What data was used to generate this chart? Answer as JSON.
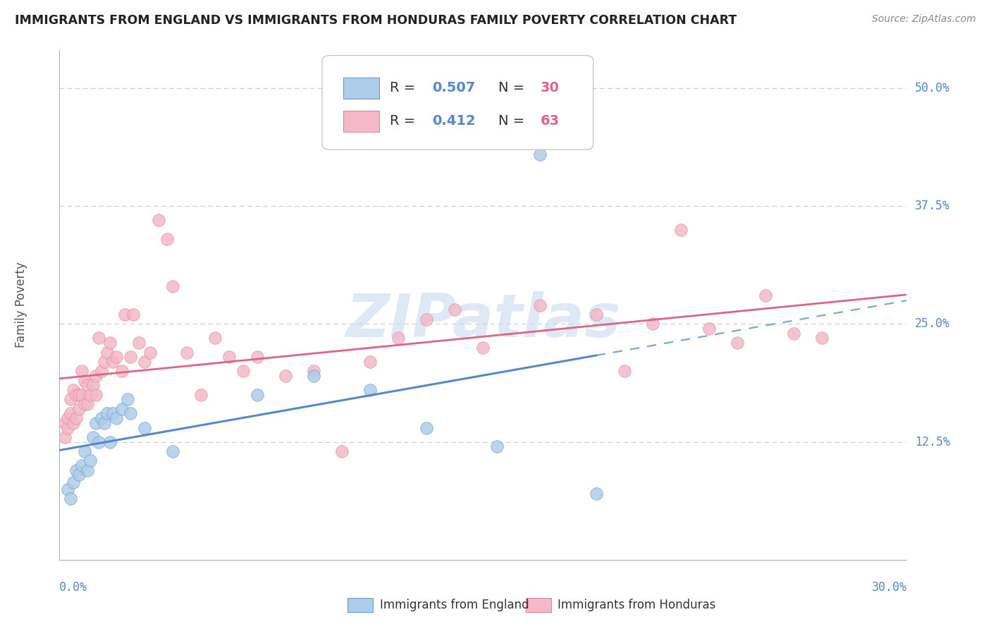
{
  "title": "IMMIGRANTS FROM ENGLAND VS IMMIGRANTS FROM HONDURAS FAMILY POVERTY CORRELATION CHART",
  "source": "Source: ZipAtlas.com",
  "ylabel": "Family Poverty",
  "xlim": [
    0.0,
    0.3
  ],
  "ylim": [
    0.0,
    0.54
  ],
  "ytick_vals": [
    0.125,
    0.25,
    0.375,
    0.5
  ],
  "ytick_labels": [
    "12.5%",
    "25.0%",
    "37.5%",
    "50.0%"
  ],
  "xtick_left": "0.0%",
  "xtick_right": "30.0%",
  "england_R": "0.507",
  "england_N": "30",
  "honduras_R": "0.412",
  "honduras_N": "63",
  "england_face": "#aecde8",
  "england_edge": "#6699cc",
  "honduras_face": "#f4b8c8",
  "honduras_edge": "#dd8899",
  "england_line": "#5588cc",
  "honduras_line": "#dd6688",
  "grid_color": "#cccccc",
  "title_color": "#222222",
  "source_color": "#888888",
  "axis_label_color": "#5588cc",
  "bg_color": "#ffffff",
  "watermark": "ZIPatlas",
  "england_x": [
    0.003,
    0.004,
    0.005,
    0.006,
    0.007,
    0.008,
    0.009,
    0.01,
    0.011,
    0.012,
    0.013,
    0.014,
    0.015,
    0.016,
    0.017,
    0.018,
    0.019,
    0.02,
    0.022,
    0.024,
    0.025,
    0.03,
    0.04,
    0.07,
    0.09,
    0.11,
    0.13,
    0.155,
    0.17,
    0.19
  ],
  "england_y": [
    0.075,
    0.065,
    0.082,
    0.095,
    0.09,
    0.1,
    0.115,
    0.095,
    0.105,
    0.13,
    0.145,
    0.125,
    0.15,
    0.145,
    0.155,
    0.125,
    0.155,
    0.15,
    0.16,
    0.17,
    0.155,
    0.14,
    0.115,
    0.175,
    0.195,
    0.18,
    0.14,
    0.12,
    0.43,
    0.07
  ],
  "honduras_x": [
    0.002,
    0.002,
    0.003,
    0.003,
    0.004,
    0.004,
    0.005,
    0.005,
    0.006,
    0.006,
    0.007,
    0.007,
    0.008,
    0.008,
    0.009,
    0.009,
    0.01,
    0.01,
    0.011,
    0.012,
    0.013,
    0.013,
    0.014,
    0.015,
    0.016,
    0.017,
    0.018,
    0.019,
    0.02,
    0.022,
    0.023,
    0.025,
    0.026,
    0.028,
    0.03,
    0.032,
    0.035,
    0.038,
    0.04,
    0.045,
    0.05,
    0.055,
    0.06,
    0.065,
    0.07,
    0.08,
    0.09,
    0.1,
    0.11,
    0.12,
    0.13,
    0.14,
    0.15,
    0.17,
    0.19,
    0.2,
    0.21,
    0.22,
    0.23,
    0.24,
    0.25,
    0.26,
    0.27
  ],
  "honduras_y": [
    0.13,
    0.145,
    0.14,
    0.15,
    0.155,
    0.17,
    0.145,
    0.18,
    0.15,
    0.175,
    0.16,
    0.175,
    0.175,
    0.2,
    0.165,
    0.19,
    0.165,
    0.185,
    0.175,
    0.185,
    0.175,
    0.195,
    0.235,
    0.2,
    0.21,
    0.22,
    0.23,
    0.21,
    0.215,
    0.2,
    0.26,
    0.215,
    0.26,
    0.23,
    0.21,
    0.22,
    0.36,
    0.34,
    0.29,
    0.22,
    0.175,
    0.235,
    0.215,
    0.2,
    0.215,
    0.195,
    0.2,
    0.115,
    0.21,
    0.235,
    0.255,
    0.265,
    0.225,
    0.27,
    0.26,
    0.2,
    0.25,
    0.35,
    0.245,
    0.23,
    0.28,
    0.24,
    0.235
  ]
}
